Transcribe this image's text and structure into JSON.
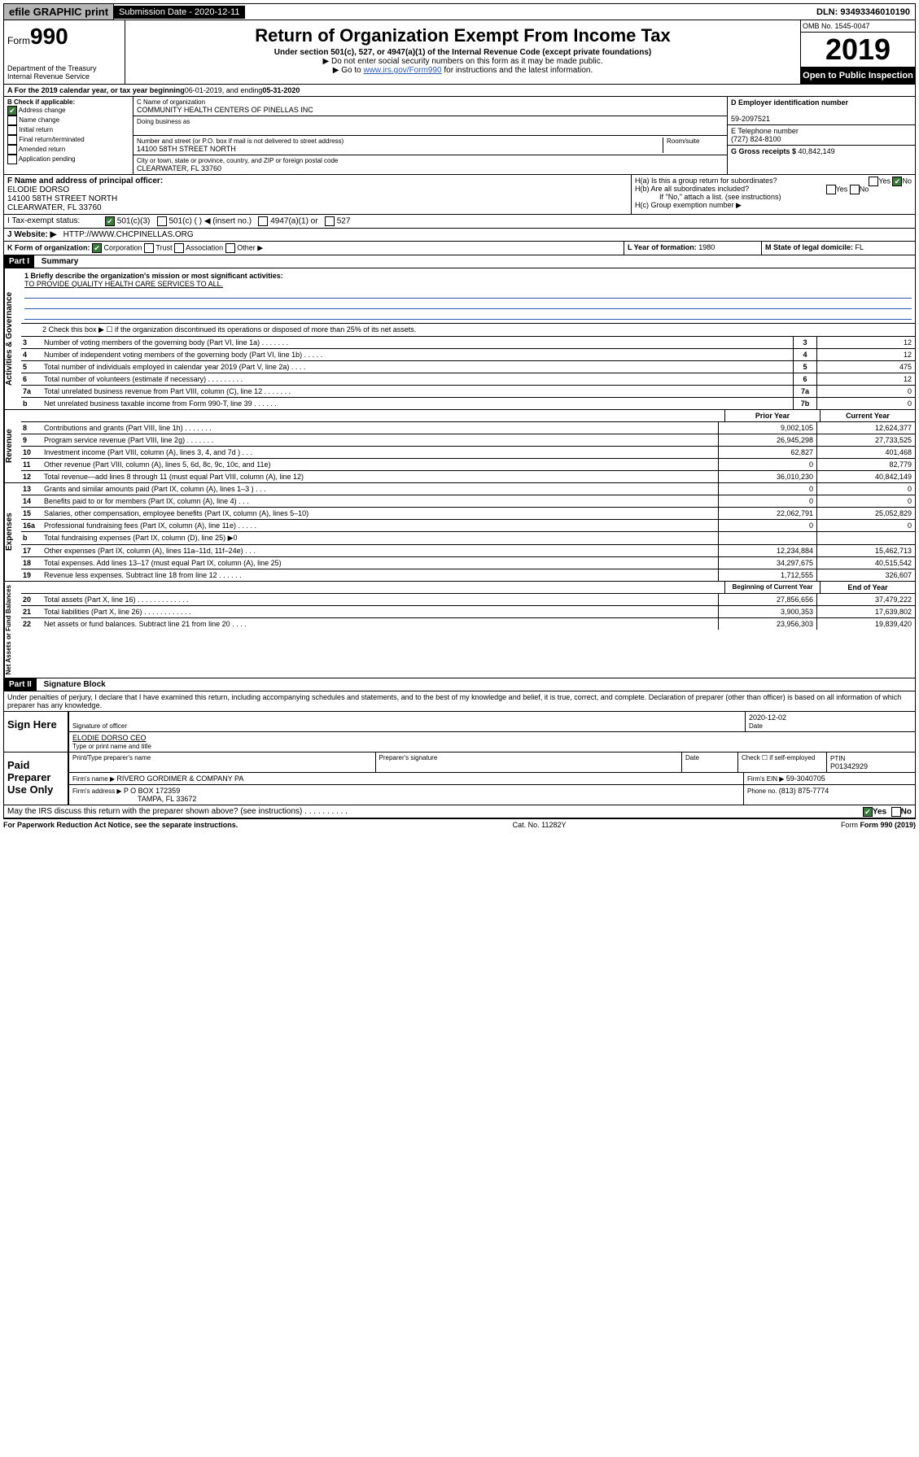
{
  "topbar": {
    "efile": "efile GRAPHIC print",
    "submission_label": "Submission Date - 2020-12-11",
    "dln": "DLN: 93493346010190"
  },
  "header": {
    "form_label": "Form",
    "form_num": "990",
    "dept": "Department of the Treasury",
    "irs": "Internal Revenue Service",
    "title": "Return of Organization Exempt From Income Tax",
    "subtitle": "Under section 501(c), 527, or 4947(a)(1) of the Internal Revenue Code (except private foundations)",
    "note1": "▶ Do not enter social security numbers on this form as it may be made public.",
    "note2_pre": "▶ Go to ",
    "note2_link": "www.irs.gov/Form990",
    "note2_post": " for instructions and the latest information.",
    "omb": "OMB No. 1545-0047",
    "year": "2019",
    "open": "Open to Public Inspection"
  },
  "period": {
    "label_a": "A For the 2019 calendar year, or tax year beginning ",
    "begin": "06-01-2019",
    "mid": " , and ending ",
    "end": "05-31-2020"
  },
  "B": {
    "title": "B Check if applicable:",
    "addr_change": "Address change",
    "name_change": "Name change",
    "initial": "Initial return",
    "final": "Final return/terminated",
    "amended": "Amended return",
    "app_pending": "Application pending"
  },
  "C": {
    "name_label": "C Name of organization",
    "name": "COMMUNITY HEALTH CENTERS OF PINELLAS INC",
    "dba_label": "Doing business as",
    "addr_label": "Number and street (or P.O. box if mail is not delivered to street address)",
    "room_label": "Room/suite",
    "addr": "14100 58TH STREET NORTH",
    "city_label": "City or town, state or province, country, and ZIP or foreign postal code",
    "city": "CLEARWATER, FL  33760"
  },
  "D": {
    "label": "D Employer identification number",
    "ein": "59-2097521",
    "E_label": "E Telephone number",
    "phone": "(727) 824-8100",
    "G_label": "G Gross receipts $ ",
    "gross": "40,842,149"
  },
  "F": {
    "label": "F  Name and address of principal officer:",
    "name": "ELODIE DORSO",
    "addr1": "14100 58TH STREET NORTH",
    "addr2": "CLEARWATER, FL  33760"
  },
  "H": {
    "a": "H(a)  Is this a group return for subordinates?",
    "b": "H(b)  Are all subordinates included?",
    "b_note": "If \"No,\" attach a list. (see instructions)",
    "c": "H(c)  Group exemption number ▶",
    "yes": "Yes",
    "no": "No"
  },
  "I": {
    "label": "I   Tax-exempt status:",
    "o501c3": "501(c)(3)",
    "o501c": "501(c) (   ) ◀ (insert no.)",
    "o4947": "4947(a)(1) or",
    "o527": "527"
  },
  "J": {
    "label": "J   Website: ▶",
    "url": "HTTP://WWW.CHCPINELLAS.ORG"
  },
  "K": {
    "label": "K Form of organization:",
    "corp": "Corporation",
    "trust": "Trust",
    "assoc": "Association",
    "other": "Other ▶"
  },
  "L": {
    "label": "L Year of formation: ",
    "val": "1980"
  },
  "M": {
    "label": "M State of legal domicile: ",
    "val": "FL"
  },
  "part1": {
    "header": "Part I",
    "title": "Summary",
    "line1_label": "1  Briefly describe the organization's mission or most significant activities:",
    "mission": "TO PROVIDE QUALITY HEALTH CARE SERVICES TO ALL.",
    "line2": "2   Check this box ▶ ☐  if the organization discontinued its operations or disposed of more than 25% of its net assets.",
    "prior_year": "Prior Year",
    "current_year": "Current Year",
    "beg_year": "Beginning of Current Year",
    "end_year": "End of Year",
    "rows_top": [
      {
        "n": "3",
        "d": "Number of voting members of the governing body (Part VI, line 1a)  .    .    .    .    .    .    .",
        "b": "3",
        "v": "12"
      },
      {
        "n": "4",
        "d": "Number of independent voting members of the governing body (Part VI, line 1b)  .    .    .    .    .",
        "b": "4",
        "v": "12"
      },
      {
        "n": "5",
        "d": "Total number of individuals employed in calendar year 2019 (Part V, line 2a)  .    .    .    .",
        "b": "5",
        "v": "475"
      },
      {
        "n": "6",
        "d": "Total number of volunteers (estimate if necessary)  .    .    .    .    .    .    .    .    .",
        "b": "6",
        "v": "12"
      },
      {
        "n": "7a",
        "d": "Total unrelated business revenue from Part VIII, column (C), line 12  .    .    .    .    .    .    .",
        "b": "7a",
        "v": "0"
      },
      {
        "n": "b",
        "d": "Net unrelated business taxable income from Form 990-T, line 39  .    .    .    .    .    .",
        "b": "7b",
        "v": "0"
      }
    ],
    "rows_rev": [
      {
        "n": "8",
        "d": "Contributions and grants (Part VIII, line 1h)  .    .    .    .    .    .    .",
        "p": "9,002,105",
        "c": "12,624,377"
      },
      {
        "n": "9",
        "d": "Program service revenue (Part VIII, line 2g)  .    .    .    .    .    .    .",
        "p": "26,945,298",
        "c": "27,733,525"
      },
      {
        "n": "10",
        "d": "Investment income (Part VIII, column (A), lines 3, 4, and 7d )  .    .    .",
        "p": "62,827",
        "c": "401,468"
      },
      {
        "n": "11",
        "d": "Other revenue (Part VIII, column (A), lines 5, 6d, 8c, 9c, 10c, and 11e)",
        "p": "0",
        "c": "82,779"
      },
      {
        "n": "12",
        "d": "Total revenue—add lines 8 through 11 (must equal Part VIII, column (A), line 12)",
        "p": "36,010,230",
        "c": "40,842,149"
      }
    ],
    "rows_exp": [
      {
        "n": "13",
        "d": "Grants and similar amounts paid (Part IX, column (A), lines 1–3 )  .    .    .",
        "p": "0",
        "c": "0"
      },
      {
        "n": "14",
        "d": "Benefits paid to or for members (Part IX, column (A), line 4)  .    .    .",
        "p": "0",
        "c": "0"
      },
      {
        "n": "15",
        "d": "Salaries, other compensation, employee benefits (Part IX, column (A), lines 5–10)",
        "p": "22,062,791",
        "c": "25,052,829"
      },
      {
        "n": "16a",
        "d": "Professional fundraising fees (Part IX, column (A), line 11e)  .    .    .    .    .",
        "p": "0",
        "c": "0"
      },
      {
        "n": "b",
        "d": "Total fundraising expenses (Part IX, column (D), line 25) ▶0",
        "p": "",
        "c": ""
      },
      {
        "n": "17",
        "d": "Other expenses (Part IX, column (A), lines 11a–11d, 11f–24e)  .    .    .",
        "p": "12,234,884",
        "c": "15,462,713"
      },
      {
        "n": "18",
        "d": "Total expenses. Add lines 13–17 (must equal Part IX, column (A), line 25)",
        "p": "34,297,675",
        "c": "40,515,542"
      },
      {
        "n": "19",
        "d": "Revenue less expenses. Subtract line 18 from line 12  .    .    .    .    .    .",
        "p": "1,712,555",
        "c": "326,607"
      }
    ],
    "rows_net": [
      {
        "n": "20",
        "d": "Total assets (Part X, line 16)  .    .    .    .    .    .    .    .    .    .    .    .    .",
        "p": "27,856,656",
        "c": "37,479,222"
      },
      {
        "n": "21",
        "d": "Total liabilities (Part X, line 26)  .    .    .    .    .    .    .    .    .    .    .    .",
        "p": "3,900,353",
        "c": "17,639,802"
      },
      {
        "n": "22",
        "d": "Net assets or fund balances. Subtract line 21 from line 20  .    .    .    .",
        "p": "23,956,303",
        "c": "19,839,420"
      }
    ],
    "tabs": {
      "gov": "Activities & Governance",
      "rev": "Revenue",
      "exp": "Expenses",
      "net": "Net Assets or Fund Balances"
    }
  },
  "part2": {
    "header": "Part II",
    "title": "Signature Block",
    "decl": "Under penalties of perjury, I declare that I have examined this return, including accompanying schedules and statements, and to the best of my knowledge and belief, it is true, correct, and complete. Declaration of preparer (other than officer) is based on all information of which preparer has any knowledge.",
    "sign_here": "Sign Here",
    "sig_officer": "Signature of officer",
    "date": "2020-12-02",
    "date_label": "Date",
    "officer_name": "ELODIE DORSO CEO",
    "type_label": "Type or print name and title",
    "paid": "Paid Preparer Use Only",
    "prep_name_label": "Print/Type preparer's name",
    "prep_sig_label": "Preparer's signature",
    "check_self": "Check ☐ if self-employed",
    "ptin_label": "PTIN",
    "ptin": "P01342929",
    "firm_name_label": "Firm's name    ▶ ",
    "firm_name": "RIVERO GORDIMER & COMPANY PA",
    "firm_ein_label": "Firm's EIN ▶ ",
    "firm_ein": "59-3040705",
    "firm_addr_label": "Firm's address ▶ ",
    "firm_addr": "P O BOX 172359",
    "firm_city": "TAMPA, FL  33672",
    "phone_label": "Phone no. ",
    "phone": "(813) 875-7774",
    "discuss": "May the IRS discuss this return with the preparer shown above? (see instructions)   .    .    .    .    .    .    .    .    .    .",
    "discuss_yes": "Yes",
    "discuss_no": "No"
  },
  "footer": {
    "pra": "For Paperwork Reduction Act Notice, see the separate instructions.",
    "cat": "Cat. No. 11282Y",
    "form": "Form 990 (2019)"
  }
}
